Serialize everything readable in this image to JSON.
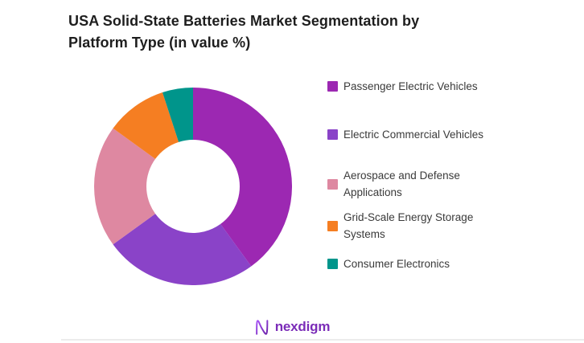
{
  "chart_data": {
    "type": "pie",
    "subtype": "donut",
    "title": "USA Solid-State Batteries Market Segmentation by\nPlatform Type (in value %)",
    "units": "value %",
    "categories": [
      "Passenger Electric Vehicles",
      "Electric Commercial Vehicles",
      "Aerospace and Defense\nApplications",
      "Grid-Scale Energy Storage\nSystems",
      "Consumer Electronics"
    ],
    "values": [
      40,
      25,
      20,
      10,
      5
    ],
    "colors": [
      "#9c28b2",
      "#8a43c8",
      "#de88a1",
      "#f57e22",
      "#00958b"
    ],
    "start_angle_deg": 0,
    "direction": "clockwise",
    "inner_radius_ratio": 0.47,
    "legend_position": "right",
    "data_labels": false
  },
  "footer": {
    "logo_text": "nexdigm"
  },
  "style": {
    "title_color": "#1e1e1e",
    "legend_text_color": "#3a3a3a",
    "logo_purple": "#7b2cb8",
    "divider_color": "#ececec",
    "background": "#ffffff"
  }
}
